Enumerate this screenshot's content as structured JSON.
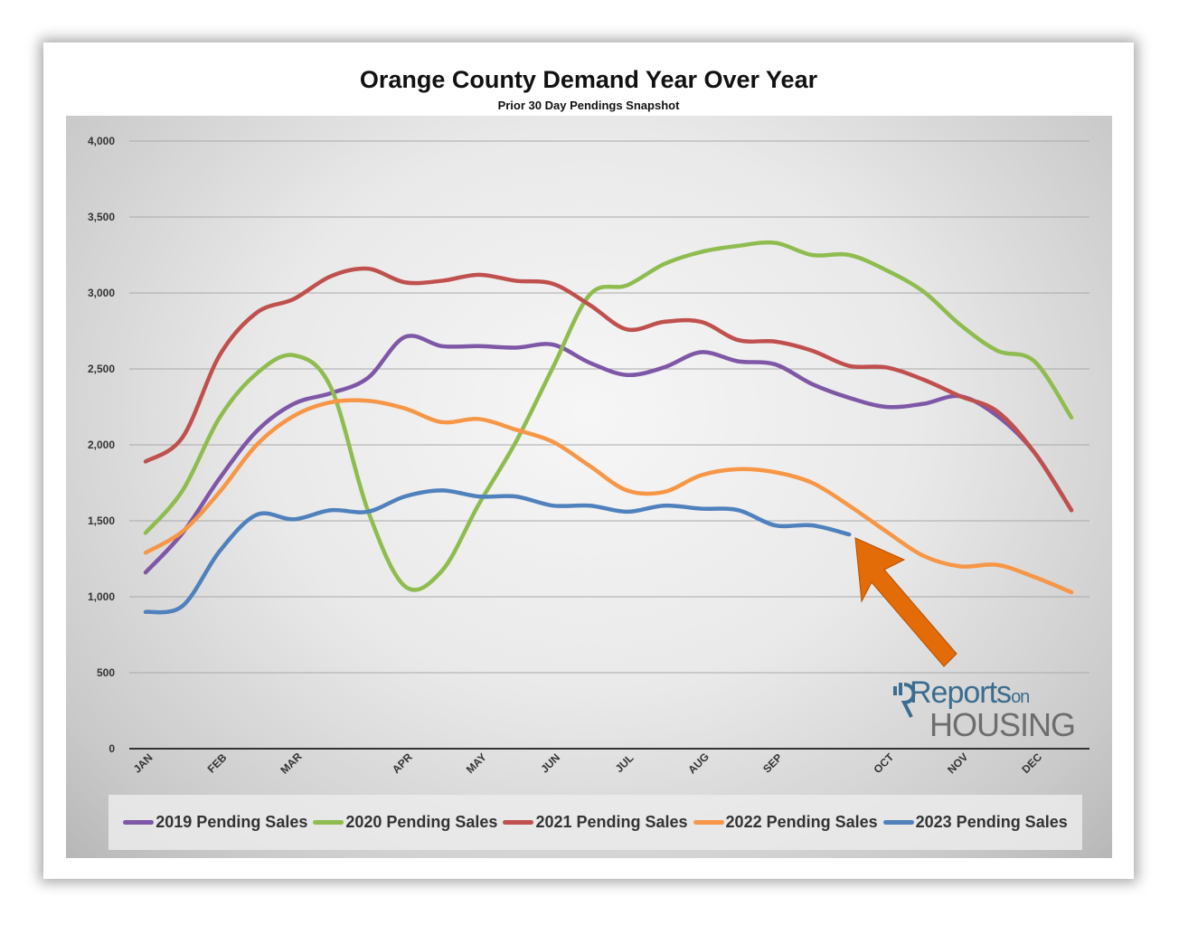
{
  "chart_data": {
    "type": "line",
    "title": "Orange County Demand Year Over Year",
    "subtitle": "Prior 30 Day Pendings Snapshot",
    "ylim": [
      0,
      4000
    ],
    "yticks": [
      "0",
      "500",
      "1,000",
      "1,500",
      "2,000",
      "2,500",
      "3,000",
      "3,500",
      "4,000"
    ],
    "ytick_values": [
      0,
      500,
      1000,
      1500,
      2000,
      2500,
      3000,
      3500,
      4000
    ],
    "month_labels": [
      "JAN",
      "FEB",
      "MAR",
      "APR",
      "MAY",
      "JUN",
      "JUL",
      "AUG",
      "SEP",
      "OCT",
      "NOV",
      "DEC"
    ],
    "month_positions": [
      0,
      2,
      4,
      7,
      9,
      11,
      13,
      15,
      17,
      20,
      22,
      24
    ],
    "x_count": 26,
    "grid": true,
    "legend_position": "bottom",
    "series": [
      {
        "name": "2019 Pending Sales",
        "color": "#7e57a6",
        "values": [
          1160,
          1420,
          1780,
          2090,
          2270,
          2340,
          2440,
          2710,
          2650,
          2650,
          2640,
          2660,
          2540,
          2460,
          2510,
          2610,
          2550,
          2530,
          2400,
          2310,
          2250,
          2270,
          2320,
          2190,
          1950,
          1570
        ]
      },
      {
        "name": "2020 Pending Sales",
        "color": "#8fbc4f",
        "values": [
          1420,
          1700,
          2180,
          2470,
          2590,
          2380,
          1570,
          1070,
          1170,
          1610,
          2020,
          2510,
          2990,
          3050,
          3190,
          3270,
          3310,
          3330,
          3250,
          3250,
          3150,
          3010,
          2790,
          2620,
          2550,
          2180
        ]
      },
      {
        "name": "2021 Pending Sales",
        "color": "#c0504d",
        "values": [
          1890,
          2050,
          2590,
          2870,
          2960,
          3110,
          3160,
          3070,
          3080,
          3120,
          3080,
          3060,
          2920,
          2760,
          2810,
          2810,
          2690,
          2680,
          2620,
          2520,
          2510,
          2430,
          2320,
          2220,
          1950,
          1570
        ]
      },
      {
        "name": "2022 Pending Sales",
        "color": "#f79646",
        "values": [
          1290,
          1430,
          1690,
          2000,
          2190,
          2280,
          2290,
          2240,
          2150,
          2170,
          2100,
          2020,
          1860,
          1700,
          1690,
          1800,
          1840,
          1820,
          1750,
          1600,
          1430,
          1270,
          1200,
          1210,
          1130,
          1030
        ]
      },
      {
        "name": "2023 Pending Sales",
        "color": "#4f81bd",
        "values": [
          900,
          940,
          1300,
          1540,
          1510,
          1570,
          1560,
          1660,
          1700,
          1660,
          1660,
          1600,
          1600,
          1560,
          1600,
          1580,
          1570,
          1470,
          1470,
          1410
        ]
      }
    ]
  },
  "logo": {
    "line1": "Reports",
    "line1_small": "on",
    "line2": "HOUSING"
  },
  "arrow": {
    "color": "#e36c09"
  }
}
